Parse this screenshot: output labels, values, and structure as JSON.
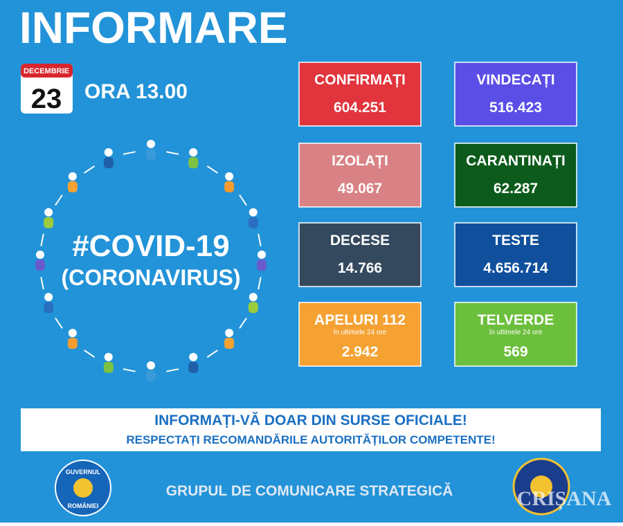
{
  "header": {
    "title": "INFORMARE",
    "month": "DECEMBRIE",
    "day": "23",
    "time": "ORA 13.00"
  },
  "emblem": {
    "line1": "#COVID-19",
    "line2": "(CORONAVIRUS)"
  },
  "cards": [
    {
      "label": "CONFIRMAȚI",
      "value": "604.251",
      "color": "#e1343c"
    },
    {
      "label": "VINDECAȚI",
      "value": "516.423",
      "color": "#5b4ee6"
    },
    {
      "label": "IZOLAȚI",
      "value": "49.067",
      "color": "#d98285"
    },
    {
      "label": "CARANTINAȚI",
      "value": "62.287",
      "color": "#0c5b1c"
    },
    {
      "label": "DECESE",
      "value": "14.766",
      "color": "#34495e"
    },
    {
      "label": "TESTE",
      "value": "4.656.714",
      "color": "#0f4f9c"
    },
    {
      "label": "APELURI 112",
      "note": "în ultimele 24 ore",
      "value": "2.942",
      "color": "#f5a233"
    },
    {
      "label": "TELVERDE",
      "note": "în ultimele 24 ore",
      "value": "569",
      "color": "#6cbf3c"
    }
  ],
  "banner": {
    "line1": "INFORMAȚI-VĂ DOAR DIN SURSE OFICIALE!",
    "line2": "RESPECTAȚI RECOMANDĂRILE AUTORITĂȚILOR COMPETENTE!"
  },
  "footer": {
    "text": "GRUPUL DE COMUNICARE STRATEGICĂ",
    "logo_left_top": "GUVERNUL",
    "logo_left_bottom": "ROMÂNIEI",
    "watermark": "CRIȘANA"
  }
}
